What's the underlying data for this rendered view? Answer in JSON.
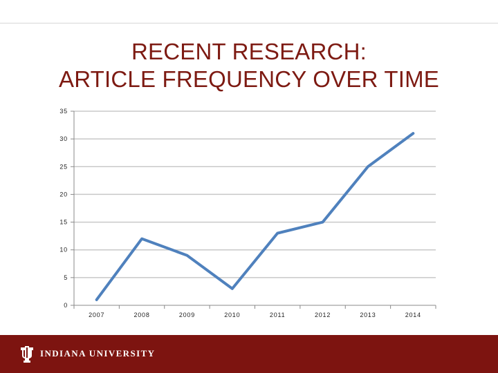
{
  "slide": {
    "title_line1": "RECENT RESEARCH:",
    "title_line2": "ARTICLE FREQUENCY OVER TIME"
  },
  "footer": {
    "university_name": "INDIANA UNIVERSITY"
  },
  "colors": {
    "title": "#7d1a12",
    "footer_bg": "#7d1410",
    "line": "#4f81bd",
    "grid": "#c8c8c8"
  },
  "chart_data": {
    "type": "line",
    "categories": [
      "2007",
      "2008",
      "2009",
      "2010",
      "2011",
      "2012",
      "2013",
      "2014"
    ],
    "series": [
      {
        "values": [
          1,
          12,
          9,
          3,
          13,
          15,
          25,
          31
        ]
      }
    ],
    "ylim": [
      0,
      35
    ],
    "yticks": [
      "0",
      "5",
      "10",
      "15",
      "20",
      "25",
      "30",
      "35"
    ],
    "grid": true,
    "legend": "none",
    "title": "",
    "xlabel": "",
    "ylabel": ""
  }
}
